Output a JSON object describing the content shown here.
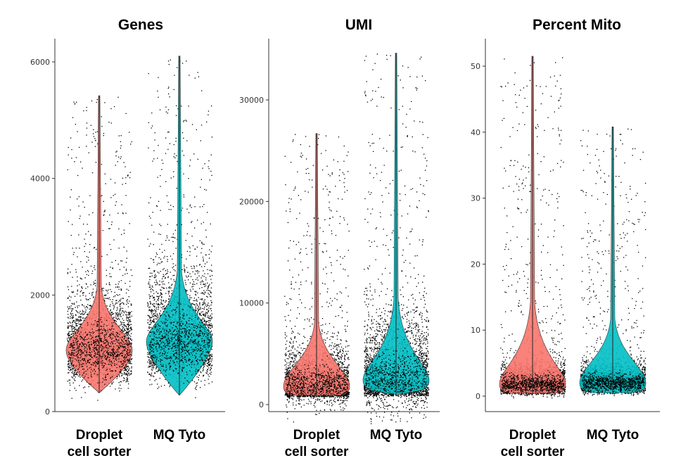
{
  "chart_data": [
    {
      "type": "violin",
      "title": "Genes",
      "categories": [
        "Droplet\ncell sorter",
        "MQ Tyto"
      ],
      "ylim": [
        0,
        6300
      ],
      "yticks": [
        0,
        2000,
        4000,
        6000
      ],
      "grid": false,
      "legend": "none",
      "series": [
        {
          "fill_color": "#F8766D",
          "median": 1050,
          "min": 320,
          "max": 5420,
          "spread": 550
        },
        {
          "fill_color": "#00BFC4",
          "median": 1200,
          "min": 280,
          "max": 6100,
          "spread": 650
        }
      ]
    },
    {
      "type": "violin",
      "title": "UMI",
      "categories": [
        "Droplet\ncell sorter",
        "MQ Tyto"
      ],
      "ylim": [
        0,
        35500
      ],
      "yticks": [
        0,
        10000,
        20000,
        30000
      ],
      "grid": false,
      "legend": "none",
      "series": [
        {
          "fill_color": "#F8766D",
          "median": 1800,
          "min": 800,
          "max": 26700,
          "spread": 2200
        },
        {
          "fill_color": "#00BFC4",
          "median": 2400,
          "min": 900,
          "max": 34600,
          "spread": 3500
        }
      ]
    },
    {
      "type": "violin",
      "title": "Percent Mito",
      "categories": [
        "Droplet\ncell sorter",
        "MQ Tyto"
      ],
      "ylim": [
        0,
        53
      ],
      "yticks": [
        0,
        10,
        20,
        30,
        40,
        50
      ],
      "grid": false,
      "legend": "none",
      "series": [
        {
          "fill_color": "#F8766D",
          "median": 1.8,
          "min": 0.3,
          "max": 51.5,
          "spread": 1.6
        },
        {
          "fill_color": "#00BFC4",
          "median": 2.0,
          "min": 0.3,
          "max": 40.8,
          "spread": 1.5
        }
      ]
    }
  ]
}
